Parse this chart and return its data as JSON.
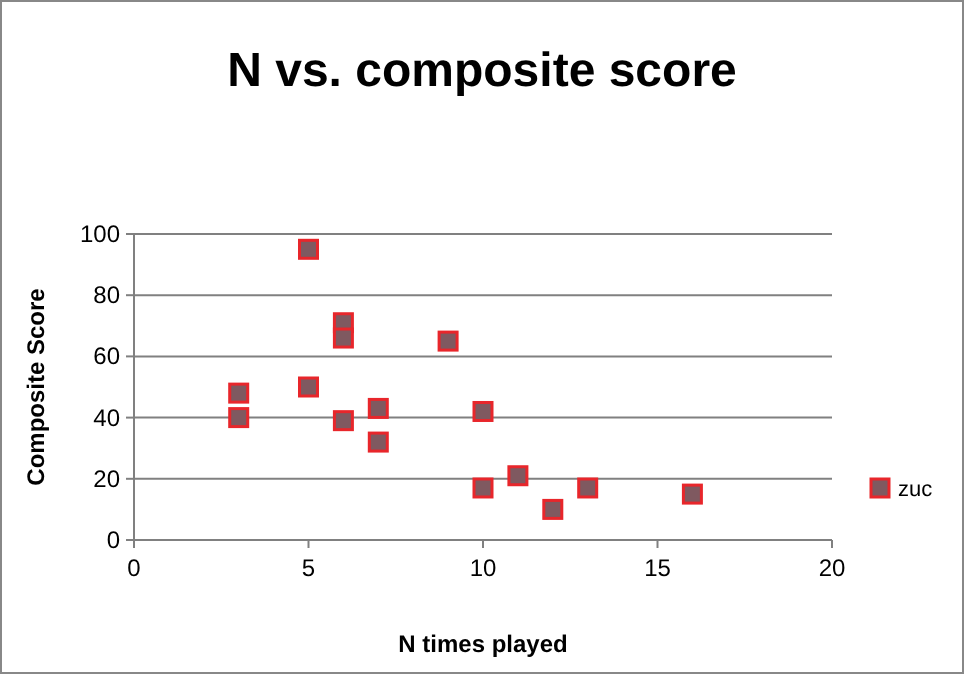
{
  "chart_data": {
    "type": "scatter",
    "title": "N vs. composite score",
    "xlabel": "N times played",
    "ylabel": "Composite Score",
    "xlim": [
      0,
      20
    ],
    "xticks": [
      0,
      5,
      10,
      15,
      20
    ],
    "ylim": [
      0,
      100
    ],
    "yticks": [
      0,
      20,
      40,
      60,
      80,
      100
    ],
    "grid": "y",
    "legend": "right",
    "marker": "square",
    "series": [
      {
        "name": "zuc",
        "color": "#7f5960",
        "x": [
          3,
          3,
          5,
          5,
          6,
          6,
          6,
          7,
          7,
          9,
          10,
          10,
          11,
          12,
          13,
          16
        ],
        "values": [
          48,
          40,
          95,
          50,
          71,
          66,
          39,
          43,
          32,
          65,
          42,
          17,
          21,
          10,
          17,
          15
        ]
      }
    ]
  }
}
